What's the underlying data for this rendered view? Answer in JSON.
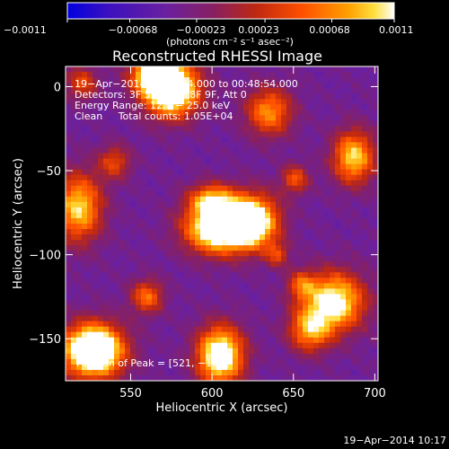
{
  "chart_data": {
    "type": "heatmap",
    "title": "Reconstructed RHESSI Image",
    "xlabel": "Heliocentric X (arcsec)",
    "ylabel": "Heliocentric Y (arcsec)",
    "xlim": [
      510,
      702
    ],
    "ylim": [
      -175,
      12
    ],
    "x_ticks": [
      550,
      600,
      650,
      700
    ],
    "y_ticks": [
      0,
      -50,
      -100,
      -150
    ],
    "x_tick_labels": [
      "550",
      "600",
      "650",
      "700"
    ],
    "y_tick_labels": [
      "0",
      "−50",
      "−100",
      "−150"
    ],
    "colorbar": {
      "range": [
        -0.0011,
        0.0011
      ],
      "ticks": [
        -0.0011,
        -0.00068,
        -0.00023,
        0.00023,
        0.00068,
        0.0011
      ],
      "tick_labels": [
        "−0.0011",
        "−0.00068",
        "−0.00023",
        "0.00023",
        "0.00068",
        "0.0011"
      ],
      "unit_label": "(photons cm⁻² s⁻¹ asec⁻²)"
    },
    "annotations": {
      "time_range": "19−Apr−2014 00:44:44.000 to 00:48:54.000",
      "detectors": "Detectors: 3F 5F 6F 7F 8F 9F, Att 0",
      "energy_range": "Energy Range: 12.0 − 25.0 keV",
      "method_counts": "Clean     Total counts: 1.05E+04",
      "peak_position": "Position of Peak = [521, −160]"
    },
    "peak": {
      "x": 521,
      "y": -160
    },
    "sources": [
      {
        "x": 575,
        "y": -2,
        "sx": 12,
        "sy": 11,
        "amp": 1.5
      },
      {
        "x": 565,
        "y": 8,
        "sx": 10,
        "sy": 8,
        "amp": 1.1
      },
      {
        "x": 603,
        "y": -85,
        "sx": 14,
        "sy": 10,
        "amp": 1.35
      },
      {
        "x": 625,
        "y": -80,
        "sx": 11,
        "sy": 11,
        "amp": 1.3
      },
      {
        "x": 600,
        "y": -68,
        "sx": 10,
        "sy": 7,
        "amp": 0.9
      },
      {
        "x": 527,
        "y": -157,
        "sx": 13,
        "sy": 11,
        "amp": 1.7
      },
      {
        "x": 605,
        "y": -160,
        "sx": 10,
        "sy": 12,
        "amp": 1.35
      },
      {
        "x": 675,
        "y": -128,
        "sx": 13,
        "sy": 12,
        "amp": 1.2
      },
      {
        "x": 687,
        "y": -42,
        "sx": 9,
        "sy": 11,
        "amp": 1.0
      },
      {
        "x": 518,
        "y": -72,
        "sx": 10,
        "sy": 14,
        "amp": 1.0
      },
      {
        "x": 635,
        "y": -15,
        "sx": 10,
        "sy": 10,
        "amp": 0.8
      },
      {
        "x": 660,
        "y": -145,
        "sx": 9,
        "sy": 9,
        "amp": 0.8
      },
      {
        "x": 560,
        "y": -125,
        "sx": 7,
        "sy": 7,
        "amp": 0.7
      },
      {
        "x": 540,
        "y": -45,
        "sx": 7,
        "sy": 7,
        "amp": 0.55
      },
      {
        "x": 651,
        "y": -55,
        "sx": 6,
        "sy": 6,
        "amp": 0.6
      },
      {
        "x": 520,
        "y": 2,
        "sx": 7,
        "sy": 7,
        "amp": 0.55
      },
      {
        "x": 655,
        "y": -118,
        "sx": 6,
        "sy": 6,
        "amp": 0.55
      },
      {
        "x": 640,
        "y": -100,
        "sx": 5,
        "sy": 5,
        "amp": 0.5
      }
    ],
    "footer_timestamp": "19−Apr−2014 10:17"
  }
}
